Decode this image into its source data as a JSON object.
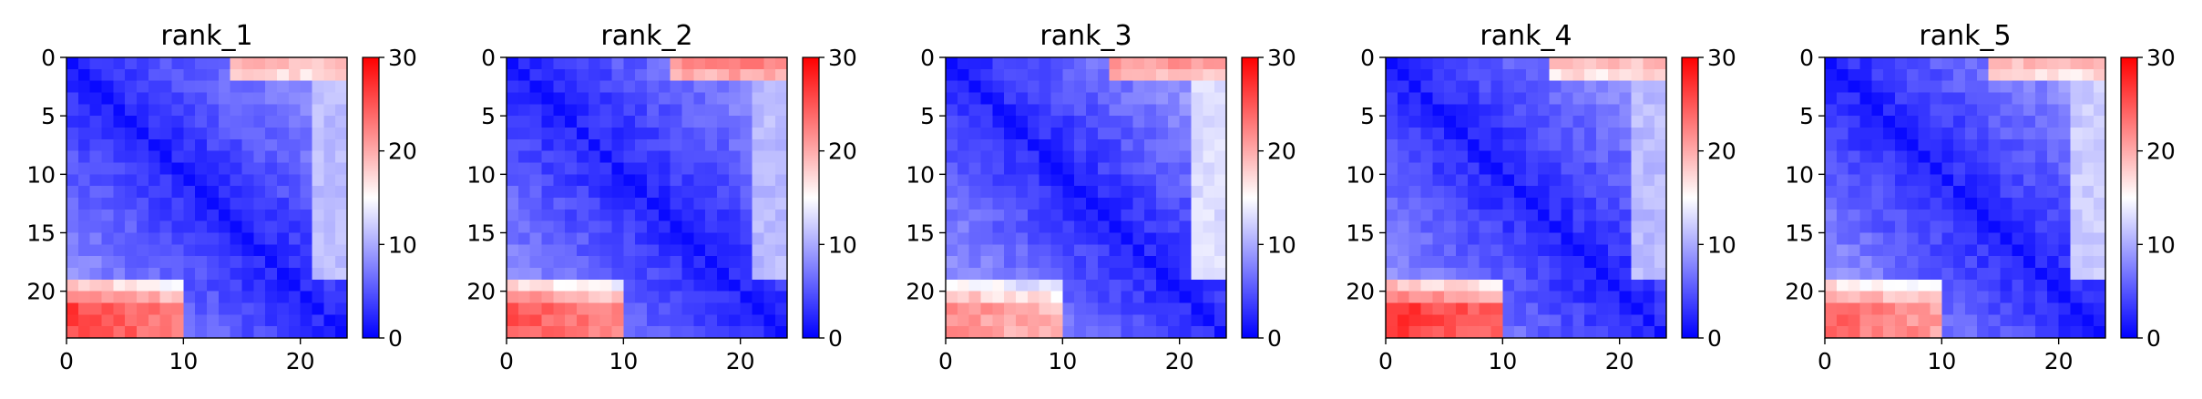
{
  "chart_data": {
    "type": "heatmap",
    "grid_size": 24,
    "colormap": "bwr",
    "colormap_colors": {
      "low": "#0000ff",
      "mid": "#ffffff",
      "high": "#ff0000"
    },
    "vmin": 0,
    "vmax": 30,
    "axis_ticks": [
      "0",
      "5",
      "10",
      "15",
      "20"
    ],
    "x_ticks": [
      "0",
      "10",
      "20"
    ],
    "colorbar_ticks": [
      "0",
      "10",
      "20",
      "30"
    ],
    "grid": false,
    "panels": [
      {
        "title": "rank_1",
        "corner_bottom_left": 26,
        "corner_top_right": 19,
        "edge_right": 11,
        "diag_rate": 0.36
      },
      {
        "title": "rank_2",
        "corner_bottom_left": 25,
        "corner_top_right": 22,
        "edge_right": 11,
        "diag_rate": 0.34
      },
      {
        "title": "rank_3",
        "corner_bottom_left": 22,
        "corner_top_right": 21,
        "edge_right": 13,
        "diag_rate": 0.38
      },
      {
        "title": "rank_4",
        "corner_bottom_left": 27,
        "corner_top_right": 19,
        "edge_right": 11,
        "diag_rate": 0.35
      },
      {
        "title": "rank_5",
        "corner_bottom_left": 24,
        "corner_top_right": 19,
        "edge_right": 12,
        "diag_rate": 0.36
      }
    ]
  }
}
